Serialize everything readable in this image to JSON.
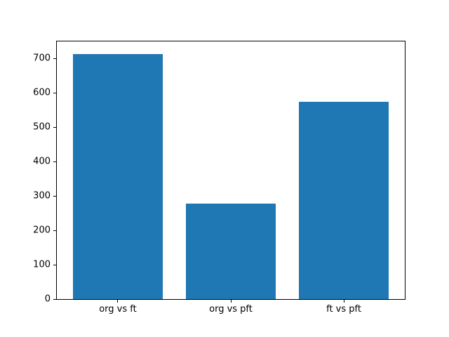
{
  "chart_data": {
    "type": "bar",
    "title": "",
    "xlabel": "",
    "ylabel": "",
    "categories": [
      "org vs ft",
      "org vs pft",
      "ft vs pft"
    ],
    "values": [
      713,
      278,
      574
    ],
    "yticks": [
      0,
      100,
      200,
      300,
      400,
      500,
      600,
      700
    ],
    "ylim": [
      0,
      749
    ],
    "bar_color": "#1f77b4",
    "bar_width_fraction": 0.8,
    "x_margin_fraction": 0.05,
    "grid": false,
    "legend": null,
    "background_color": "#ffffff",
    "spine_color": "#000000",
    "tick_label_color": "#000000"
  }
}
